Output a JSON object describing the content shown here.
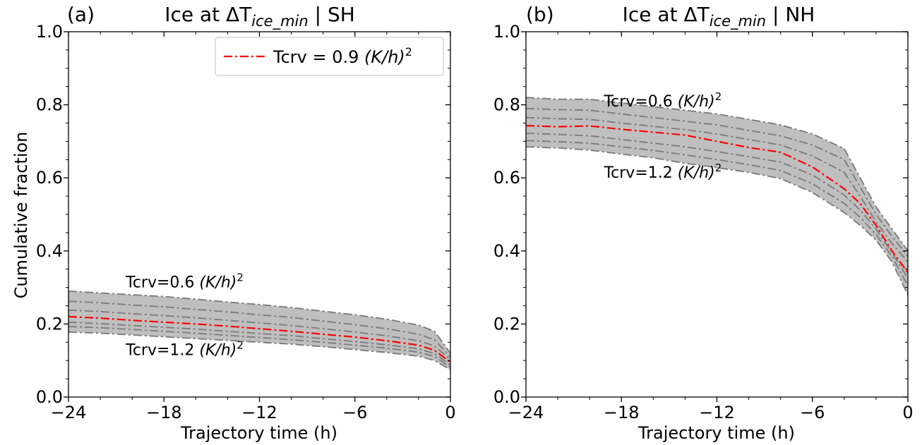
{
  "chart_data": [
    {
      "type": "line",
      "panel": "(a)",
      "title_prefix": "Ice at ΔT",
      "title_sub": "ice_min",
      "title_suffix": " | SH",
      "xlabel": "Trajectory time (h)",
      "ylabel": "Cumulative fraction",
      "xlim": [
        -24,
        0
      ],
      "ylim": [
        0,
        1
      ],
      "xticks": [
        -24,
        -18,
        -12,
        -6,
        0
      ],
      "xtick_labels": [
        "−24",
        "−18",
        "−12",
        "−6",
        "0"
      ],
      "yticks": [
        0,
        0.2,
        0.4,
        0.6,
        0.8,
        1.0
      ],
      "ytick_labels": [
        "0.0",
        "0.2",
        "0.4",
        "0.6",
        "0.8",
        "1.0"
      ],
      "legend": {
        "position": "top-right",
        "text": "Tcrv = 0.9 ",
        "unit": "(K/h)",
        "exp": "2"
      },
      "annotations": [
        {
          "text": "Tcrv=0.6 ",
          "unit": "(K/h)",
          "exp": "2",
          "x": -20.4,
          "y": 0.3
        },
        {
          "text": "Tcrv=1.2 ",
          "unit": "(K/h)",
          "exp": "2",
          "x": -20.4,
          "y": 0.115
        }
      ],
      "x": [
        -24,
        -22,
        -20,
        -18,
        -16,
        -14,
        -12,
        -10,
        -8,
        -6,
        -4,
        -2,
        -1,
        0
      ],
      "band": {
        "upper": [
          0.29,
          0.285,
          0.28,
          0.275,
          0.268,
          0.26,
          0.253,
          0.245,
          0.235,
          0.225,
          0.213,
          0.197,
          0.18,
          0.12
        ],
        "lower": [
          0.178,
          0.175,
          0.17,
          0.165,
          0.16,
          0.155,
          0.15,
          0.145,
          0.138,
          0.13,
          0.122,
          0.112,
          0.1,
          0.075
        ]
      },
      "series": [
        {
          "values": [
            0.29,
            0.285,
            0.28,
            0.275,
            0.268,
            0.26,
            0.253,
            0.245,
            0.235,
            0.225,
            0.213,
            0.197,
            0.18,
            0.12
          ]
        },
        {
          "values": [
            0.262,
            0.258,
            0.252,
            0.247,
            0.24,
            0.233,
            0.225,
            0.218,
            0.208,
            0.198,
            0.187,
            0.172,
            0.157,
            0.11
          ]
        },
        {
          "values": [
            0.238,
            0.234,
            0.228,
            0.223,
            0.217,
            0.21,
            0.203,
            0.196,
            0.187,
            0.178,
            0.168,
            0.154,
            0.14,
            0.102
          ]
        },
        {
          "highlight": true,
          "values": [
            0.22,
            0.216,
            0.21,
            0.205,
            0.2,
            0.194,
            0.187,
            0.18,
            0.172,
            0.164,
            0.154,
            0.142,
            0.128,
            0.095
          ]
        },
        {
          "values": [
            0.205,
            0.201,
            0.196,
            0.191,
            0.186,
            0.18,
            0.174,
            0.168,
            0.16,
            0.152,
            0.143,
            0.132,
            0.119,
            0.088
          ]
        },
        {
          "values": [
            0.193,
            0.19,
            0.185,
            0.18,
            0.175,
            0.169,
            0.163,
            0.157,
            0.15,
            0.142,
            0.134,
            0.123,
            0.111,
            0.082
          ]
        },
        {
          "values": [
            0.178,
            0.175,
            0.17,
            0.165,
            0.16,
            0.155,
            0.15,
            0.145,
            0.138,
            0.13,
            0.122,
            0.112,
            0.1,
            0.075
          ]
        }
      ]
    },
    {
      "type": "line",
      "panel": "(b)",
      "title_prefix": "Ice at ΔT",
      "title_sub": "ice_min",
      "title_suffix": " | NH",
      "xlabel": "Trajectory time (h)",
      "ylabel": "",
      "xlim": [
        -24,
        0
      ],
      "ylim": [
        0,
        1
      ],
      "xticks": [
        -24,
        -18,
        -12,
        -6,
        0
      ],
      "xtick_labels": [
        "−24",
        "−18",
        "−12",
        "−6",
        "0"
      ],
      "yticks": [
        0,
        0.2,
        0.4,
        0.6,
        0.8,
        1.0
      ],
      "ytick_labels": [
        "0.0",
        "0.2",
        "0.4",
        "0.6",
        "0.8",
        "1.0"
      ],
      "annotations": [
        {
          "text": "Tcrv=0.6 ",
          "unit": "(K/h)",
          "exp": "2",
          "x": -19.1,
          "y": 0.795
        },
        {
          "text": "Tcrv=1.2 ",
          "unit": "(K/h)",
          "exp": "2",
          "x": -19.1,
          "y": 0.6
        }
      ],
      "x": [
        -24,
        -22,
        -20,
        -18,
        -16,
        -14,
        -12,
        -10,
        -8,
        -6,
        -4,
        -3,
        -2,
        -1,
        0
      ],
      "band": {
        "upper": [
          0.82,
          0.815,
          0.815,
          0.805,
          0.795,
          0.785,
          0.775,
          0.76,
          0.745,
          0.72,
          0.68,
          0.6,
          0.52,
          0.46,
          0.4
        ],
        "lower": [
          0.685,
          0.682,
          0.676,
          0.665,
          0.655,
          0.64,
          0.628,
          0.615,
          0.598,
          0.56,
          0.505,
          0.47,
          0.43,
          0.37,
          0.28
        ]
      },
      "series": [
        {
          "values": [
            0.82,
            0.815,
            0.815,
            0.805,
            0.795,
            0.785,
            0.775,
            0.76,
            0.745,
            0.72,
            0.68,
            0.6,
            0.52,
            0.46,
            0.4
          ]
        },
        {
          "values": [
            0.79,
            0.787,
            0.785,
            0.775,
            0.765,
            0.755,
            0.745,
            0.73,
            0.715,
            0.69,
            0.65,
            0.575,
            0.5,
            0.44,
            0.385
          ]
        },
        {
          "values": [
            0.765,
            0.762,
            0.76,
            0.75,
            0.741,
            0.732,
            0.72,
            0.705,
            0.69,
            0.66,
            0.615,
            0.55,
            0.48,
            0.42,
            0.37
          ]
        },
        {
          "highlight": true,
          "values": [
            0.743,
            0.74,
            0.742,
            0.733,
            0.725,
            0.717,
            0.7,
            0.683,
            0.67,
            0.63,
            0.57,
            0.53,
            0.47,
            0.4,
            0.34
          ]
        },
        {
          "values": [
            0.722,
            0.719,
            0.715,
            0.705,
            0.695,
            0.685,
            0.672,
            0.658,
            0.643,
            0.608,
            0.553,
            0.512,
            0.46,
            0.395,
            0.325
          ]
        },
        {
          "values": [
            0.702,
            0.699,
            0.695,
            0.685,
            0.675,
            0.663,
            0.65,
            0.636,
            0.62,
            0.584,
            0.53,
            0.492,
            0.445,
            0.385,
            0.305
          ]
        },
        {
          "values": [
            0.685,
            0.682,
            0.676,
            0.665,
            0.655,
            0.64,
            0.628,
            0.615,
            0.598,
            0.56,
            0.505,
            0.47,
            0.43,
            0.37,
            0.28
          ]
        }
      ]
    }
  ],
  "colors": {
    "band_fill": "#bfbfbf",
    "series_line": "#808080",
    "highlight_line": "#ff0000",
    "axis": "#000000"
  }
}
